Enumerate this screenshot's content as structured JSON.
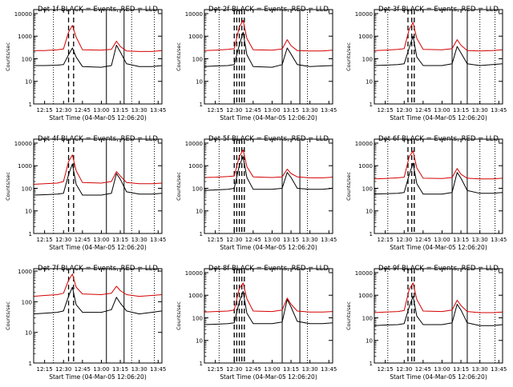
{
  "page": {
    "title": "Det 1f BLACK = Events, RED = LLD"
  },
  "colors": {
    "events": "#000000",
    "lld": "#d40000",
    "axes": "#000000"
  },
  "chart_data": [
    {
      "type": "line",
      "scale": "log",
      "grid": false,
      "title": "Det 1f BLACK = Events, RED = LLD",
      "xlabel": "Start Time (04-Mar-05 12:06:20)",
      "ylabel": "Counts/sec",
      "xlim": [
        "12:06:20",
        "13:48:00"
      ],
      "ylim": [
        1,
        15000
      ],
      "xticks": [
        "12:15",
        "12:30",
        "12:45",
        "13:00",
        "13:15",
        "13:30",
        "13:45"
      ],
      "yticks": [
        "1",
        "10",
        "100",
        "1000",
        "10000"
      ],
      "x": [
        "12:06",
        "12:15",
        "12:25",
        "12:30",
        "12:34",
        "12:37",
        "12:40",
        "12:45",
        "13:00",
        "13:08",
        "13:12",
        "13:15",
        "13:20",
        "13:30",
        "13:40",
        "13:48"
      ],
      "series": [
        {
          "name": "BLACK = Events",
          "values": [
            50,
            50,
            52,
            55,
            150,
            300,
            120,
            45,
            42,
            50,
            400,
            200,
            60,
            45,
            45,
            50
          ]
        },
        {
          "name": "RED = LLD",
          "values": [
            230,
            230,
            250,
            270,
            1500,
            3000,
            900,
            250,
            240,
            260,
            600,
            350,
            220,
            210,
            210,
            230
          ]
        }
      ],
      "vlines_solid": [
        "13:04",
        "13:18"
      ],
      "vlines_dotted": [
        "12:22",
        "13:24",
        "13:42"
      ],
      "vlines_dashed": [
        "12:34",
        "12:38"
      ]
    },
    {
      "type": "line",
      "scale": "log",
      "grid": false,
      "title": "Det 2f BLACK = Events, RED = LLD",
      "xlabel": "Start Time (04-Mar-05 12:06:20)",
      "ylabel": "Counts/sec",
      "xlim": [
        "12:06:20",
        "13:48:00"
      ],
      "ylim": [
        1,
        15000
      ],
      "xticks": [
        "12:15",
        "12:30",
        "12:45",
        "13:00",
        "13:15",
        "13:30",
        "13:45"
      ],
      "yticks": [
        "1",
        "10",
        "100",
        "1000",
        "10000"
      ],
      "x": [
        "12:06",
        "12:15",
        "12:25",
        "12:30",
        "12:34",
        "12:37",
        "12:40",
        "12:45",
        "13:00",
        "13:08",
        "13:12",
        "13:15",
        "13:20",
        "13:30",
        "13:40",
        "13:48"
      ],
      "series": [
        {
          "name": "BLACK = Events",
          "values": [
            45,
            48,
            50,
            55,
            400,
            1500,
            150,
            45,
            42,
            55,
            300,
            160,
            55,
            45,
            48,
            50
          ]
        },
        {
          "name": "RED = LLD",
          "values": [
            230,
            240,
            260,
            280,
            2500,
            5000,
            800,
            250,
            240,
            270,
            700,
            380,
            230,
            220,
            220,
            240
          ]
        }
      ],
      "vlines_solid": [
        "13:08",
        "13:22"
      ],
      "vlines_dotted": [
        "12:18",
        "13:28"
      ],
      "vlines_dashed": [
        "12:30",
        "12:32",
        "12:34",
        "12:36",
        "12:38"
      ]
    },
    {
      "type": "line",
      "scale": "log",
      "grid": false,
      "title": "Det 3f BLACK = Events, RED = LLD",
      "xlabel": "Start Time (04-Mar-05 12:06:20)",
      "ylabel": "Counts/sec",
      "xlim": [
        "12:06:20",
        "13:48:00"
      ],
      "ylim": [
        1,
        15000
      ],
      "xticks": [
        "12:15",
        "12:30",
        "12:45",
        "13:00",
        "13:15",
        "13:30",
        "13:45"
      ],
      "yticks": [
        "1",
        "10",
        "100",
        "1000",
        "10000"
      ],
      "x": [
        "12:06",
        "12:15",
        "12:25",
        "12:30",
        "12:34",
        "12:37",
        "12:40",
        "12:45",
        "13:00",
        "13:08",
        "13:12",
        "13:15",
        "13:20",
        "13:30",
        "13:40",
        "13:48"
      ],
      "series": [
        {
          "name": "BLACK = Events",
          "values": [
            50,
            52,
            55,
            60,
            300,
            1000,
            120,
            50,
            50,
            60,
            350,
            180,
            60,
            50,
            55,
            60
          ]
        },
        {
          "name": "RED = LLD",
          "values": [
            230,
            240,
            260,
            280,
            2000,
            4000,
            800,
            260,
            250,
            280,
            700,
            400,
            230,
            220,
            230,
            250
          ]
        }
      ],
      "vlines_solid": [
        "13:08",
        "13:20"
      ],
      "vlines_dotted": [
        "12:17",
        "13:30",
        "13:42"
      ],
      "vlines_dashed": [
        "12:33",
        "12:36",
        "12:38"
      ]
    },
    {
      "type": "line",
      "scale": "log",
      "grid": false,
      "title": "Det 4f BLACK = Events, RED = LLD",
      "xlabel": "Start Time (04-Mar-05 12:06:20)",
      "ylabel": "Counts/sec",
      "xlim": [
        "12:06:20",
        "13:48:00"
      ],
      "ylim": [
        1,
        15000
      ],
      "xticks": [
        "12:15",
        "12:30",
        "12:45",
        "13:00",
        "13:15",
        "13:30",
        "13:45"
      ],
      "yticks": [
        "1",
        "10",
        "100",
        "1000",
        "10000"
      ],
      "x": [
        "12:06",
        "12:15",
        "12:25",
        "12:30",
        "12:34",
        "12:37",
        "12:40",
        "12:45",
        "13:00",
        "13:08",
        "13:12",
        "13:15",
        "13:20",
        "13:30",
        "13:40",
        "13:48"
      ],
      "series": [
        {
          "name": "BLACK = Events",
          "values": [
            50,
            52,
            55,
            60,
            400,
            1200,
            150,
            50,
            50,
            60,
            450,
            250,
            70,
            55,
            55,
            60
          ]
        },
        {
          "name": "RED = LLD",
          "values": [
            150,
            160,
            170,
            200,
            1500,
            3000,
            600,
            180,
            170,
            200,
            550,
            350,
            180,
            160,
            160,
            170
          ]
        }
      ],
      "vlines_solid": [
        "13:04",
        "13:18"
      ],
      "vlines_dotted": [
        "12:22",
        "13:24",
        "13:42"
      ],
      "vlines_dashed": [
        "12:34",
        "12:38"
      ]
    },
    {
      "type": "line",
      "scale": "log",
      "grid": false,
      "title": "Det 5f BLACK = Events, RED = LLD",
      "xlabel": "Start Time (04-Mar-05 12:06:20)",
      "ylabel": "Counts/sec",
      "xlim": [
        "12:06:20",
        "13:48:00"
      ],
      "ylim": [
        1,
        15000
      ],
      "xticks": [
        "12:15",
        "12:30",
        "12:45",
        "13:00",
        "13:15",
        "13:30",
        "13:45"
      ],
      "yticks": [
        "1",
        "10",
        "100",
        "1000",
        "10000"
      ],
      "x": [
        "12:06",
        "12:15",
        "12:25",
        "12:30",
        "12:34",
        "12:37",
        "12:40",
        "12:45",
        "13:00",
        "13:08",
        "13:12",
        "13:15",
        "13:20",
        "13:30",
        "13:40",
        "13:48"
      ],
      "series": [
        {
          "name": "BLACK = Events",
          "values": [
            80,
            85,
            90,
            100,
            1000,
            2500,
            300,
            90,
            90,
            100,
            500,
            300,
            100,
            90,
            90,
            100
          ]
        },
        {
          "name": "RED = LLD",
          "values": [
            300,
            310,
            330,
            350,
            2500,
            5000,
            900,
            320,
            300,
            320,
            700,
            450,
            320,
            290,
            290,
            310
          ]
        }
      ],
      "vlines_solid": [
        "13:08",
        "13:22"
      ],
      "vlines_dotted": [
        "12:18",
        "13:28"
      ],
      "vlines_dashed": [
        "12:30",
        "12:32",
        "12:34",
        "12:36",
        "12:38"
      ]
    },
    {
      "type": "line",
      "scale": "log",
      "grid": false,
      "title": "Det 6f BLACK = Events, RED = LLD",
      "xlabel": "Start Time (04-Mar-05 12:06:20)",
      "ylabel": "Counts/sec",
      "xlim": [
        "12:06:20",
        "13:48:00"
      ],
      "ylim": [
        1,
        15000
      ],
      "xticks": [
        "12:15",
        "12:30",
        "12:45",
        "13:00",
        "13:15",
        "13:30",
        "13:45"
      ],
      "yticks": [
        "1",
        "10",
        "100",
        "1000",
        "10000"
      ],
      "x": [
        "12:06",
        "12:15",
        "12:25",
        "12:30",
        "12:34",
        "12:37",
        "12:40",
        "12:45",
        "13:00",
        "13:08",
        "13:12",
        "13:15",
        "13:20",
        "13:30",
        "13:40",
        "13:48"
      ],
      "series": [
        {
          "name": "BLACK = Events",
          "values": [
            55,
            58,
            60,
            65,
            400,
            1300,
            160,
            55,
            55,
            65,
            500,
            280,
            80,
            60,
            60,
            65
          ]
        },
        {
          "name": "RED = LLD",
          "values": [
            260,
            270,
            290,
            310,
            2500,
            4500,
            800,
            280,
            270,
            300,
            750,
            420,
            280,
            260,
            260,
            280
          ]
        }
      ],
      "vlines_solid": [
        "13:08",
        "13:20"
      ],
      "vlines_dotted": [
        "12:17",
        "13:30",
        "13:42"
      ],
      "vlines_dashed": [
        "12:33",
        "12:36",
        "12:38"
      ]
    },
    {
      "type": "line",
      "scale": "log",
      "grid": false,
      "title": "Det 7f BLACK = Events, RED = LLD",
      "xlabel": "Start Time (04-Mar-05 12:06:20)",
      "ylabel": "Counts/sec",
      "xlim": [
        "12:06:20",
        "13:48:00"
      ],
      "ylim": [
        1,
        1200
      ],
      "xticks": [
        "12:15",
        "12:30",
        "12:45",
        "13:00",
        "13:15",
        "13:30",
        "13:45"
      ],
      "yticks": [
        "1",
        "10",
        "100",
        "1000"
      ],
      "x": [
        "12:06",
        "12:15",
        "12:25",
        "12:30",
        "12:34",
        "12:37",
        "12:40",
        "12:45",
        "13:00",
        "13:08",
        "13:12",
        "13:15",
        "13:20",
        "13:30",
        "13:40",
        "13:48"
      ],
      "series": [
        {
          "name": "BLACK = Events",
          "values": [
            40,
            42,
            45,
            50,
            150,
            300,
            80,
            45,
            45,
            55,
            140,
            90,
            50,
            40,
            45,
            50
          ]
        },
        {
          "name": "RED = LLD",
          "values": [
            150,
            160,
            170,
            190,
            500,
            800,
            300,
            180,
            170,
            190,
            320,
            230,
            170,
            150,
            160,
            170
          ]
        }
      ],
      "vlines_solid": [
        "13:04",
        "13:18"
      ],
      "vlines_dotted": [
        "12:22",
        "13:24",
        "13:42"
      ],
      "vlines_dashed": [
        "12:34",
        "12:38"
      ]
    },
    {
      "type": "line",
      "scale": "log",
      "grid": false,
      "title": "Det 8f BLACK = Events, RED = LLD",
      "xlabel": "Start Time (04-Mar-05 12:06:20)",
      "ylabel": "Counts/sec",
      "xlim": [
        "12:06:20",
        "13:48:00"
      ],
      "ylim": [
        1,
        15000
      ],
      "xticks": [
        "12:15",
        "12:30",
        "12:45",
        "13:00",
        "13:15",
        "13:30",
        "13:45"
      ],
      "yticks": [
        "1",
        "10",
        "100",
        "1000",
        "10000"
      ],
      "x": [
        "12:06",
        "12:15",
        "12:25",
        "12:30",
        "12:34",
        "12:37",
        "12:40",
        "12:45",
        "13:00",
        "13:08",
        "13:12",
        "13:15",
        "13:20",
        "13:30",
        "13:40",
        "13:48"
      ],
      "series": [
        {
          "name": "BLACK = Events",
          "values": [
            50,
            52,
            55,
            60,
            500,
            1500,
            160,
            55,
            55,
            65,
            650,
            300,
            70,
            55,
            55,
            60
          ]
        },
        {
          "name": "RED = LLD",
          "values": [
            180,
            190,
            200,
            220,
            2000,
            3500,
            700,
            200,
            190,
            220,
            750,
            400,
            200,
            180,
            180,
            190
          ]
        }
      ],
      "vlines_solid": [
        "13:08",
        "13:22"
      ],
      "vlines_dotted": [
        "12:18",
        "13:28"
      ],
      "vlines_dashed": [
        "12:30",
        "12:32",
        "12:34",
        "12:36",
        "12:38"
      ]
    },
    {
      "type": "line",
      "scale": "log",
      "grid": false,
      "title": "Det 9f BLACK = Events, RED = LLD",
      "xlabel": "Start Time (04-Mar-05 12:06:20)",
      "ylabel": "Counts/sec",
      "xlim": [
        "12:06:20",
        "13:48:00"
      ],
      "ylim": [
        1,
        15000
      ],
      "xticks": [
        "12:15",
        "12:30",
        "12:45",
        "13:00",
        "13:15",
        "13:30",
        "13:45"
      ],
      "yticks": [
        "1",
        "10",
        "100",
        "1000",
        "10000"
      ],
      "x": [
        "12:06",
        "12:15",
        "12:25",
        "12:30",
        "12:34",
        "12:37",
        "12:40",
        "12:45",
        "13:00",
        "13:08",
        "13:12",
        "13:15",
        "13:20",
        "13:30",
        "13:40",
        "13:48"
      ],
      "series": [
        {
          "name": "BLACK = Events",
          "values": [
            45,
            48,
            50,
            55,
            300,
            900,
            120,
            50,
            50,
            60,
            400,
            220,
            60,
            45,
            45,
            50
          ]
        },
        {
          "name": "RED = LLD",
          "values": [
            170,
            180,
            190,
            210,
            1800,
            3500,
            650,
            200,
            190,
            220,
            600,
            350,
            190,
            170,
            170,
            180
          ]
        }
      ],
      "vlines_solid": [
        "13:08",
        "13:20"
      ],
      "vlines_dotted": [
        "12:17",
        "13:30",
        "13:42"
      ],
      "vlines_dashed": [
        "12:33",
        "12:36",
        "12:38"
      ]
    }
  ]
}
